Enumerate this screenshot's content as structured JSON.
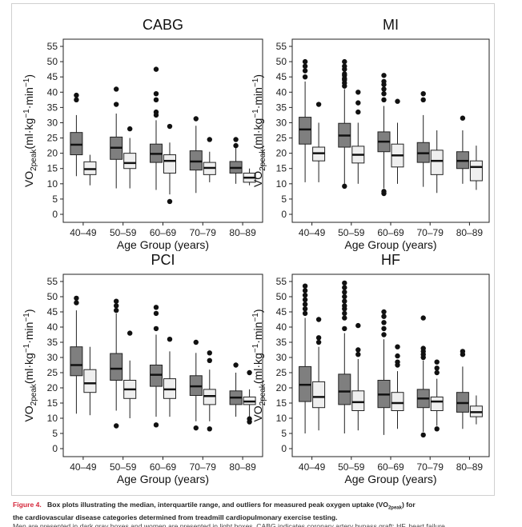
{
  "chart_data": [
    {
      "type": "boxplot",
      "title": "CABG",
      "xlabel": "Age Group (years)",
      "ylabel": "VO2peak(ml·kg−1·min−1)",
      "ylim": [
        0,
        55
      ],
      "yticks": [
        "0",
        "5",
        "10",
        "15",
        "20",
        "25",
        "30",
        "35",
        "40",
        "45",
        "50",
        "55"
      ],
      "categories": [
        "40–49",
        "50–59",
        "60–69",
        "70–79",
        "80–89"
      ],
      "series": [
        {
          "name": "men",
          "color": "#7f7f7f",
          "boxes": [
            {
              "whislo": 12.5,
              "q1": 19.5,
              "med": 22.8,
              "q3": 26.8,
              "whishi": 32.5,
              "fliers": [
                37.5,
                39
              ]
            },
            {
              "whislo": 8.5,
              "q1": 18,
              "med": 21.8,
              "q3": 25.3,
              "whishi": 33,
              "fliers": [
                36,
                41
              ]
            },
            {
              "whislo": 8,
              "q1": 17,
              "med": 19.8,
              "q3": 23,
              "whishi": 30.8,
              "fliers": [
                32.5,
                33.5,
                37.5,
                39.5,
                47.5
              ]
            },
            {
              "whislo": 7,
              "q1": 14.5,
              "med": 17.3,
              "q3": 20.8,
              "whishi": 29,
              "fliers": [
                31.3
              ]
            },
            {
              "whislo": 10,
              "q1": 13.5,
              "med": 15.2,
              "q3": 17.3,
              "whishi": 21.8,
              "fliers": [
                22.5,
                24.5
              ]
            }
          ]
        },
        {
          "name": "women",
          "color": "#efefef",
          "boxes": [
            {
              "whislo": 9.5,
              "q1": 13,
              "med": 14.8,
              "q3": 17.2,
              "whishi": 19.5,
              "fliers": []
            },
            {
              "whislo": 8.5,
              "q1": 15,
              "med": 16.8,
              "q3": 20,
              "whishi": 25,
              "fliers": [
                28
              ]
            },
            {
              "whislo": 6.5,
              "q1": 13.5,
              "med": 17.5,
              "q3": 19.5,
              "whishi": 23.5,
              "fliers": [
                4.2,
                28.8
              ]
            },
            {
              "whislo": 10.5,
              "q1": 13,
              "med": 15.2,
              "q3": 17,
              "whishi": 20.5,
              "fliers": [
                24.5
              ]
            },
            {
              "whislo": 9.5,
              "q1": 10.5,
              "med": 12,
              "q3": 13.5,
              "whishi": 15,
              "fliers": []
            }
          ]
        }
      ]
    },
    {
      "type": "boxplot",
      "title": "MI",
      "xlabel": "Age Group (years)",
      "ylabel": "VO2peak(ml·kg−1·min−1)",
      "ylim": [
        0,
        55
      ],
      "yticks": [
        "0",
        "5",
        "10",
        "15",
        "20",
        "25",
        "30",
        "35",
        "40",
        "45",
        "50",
        "55"
      ],
      "categories": [
        "40–49",
        "50–59",
        "60–69",
        "70–79",
        "80–89"
      ],
      "series": [
        {
          "name": "men",
          "color": "#7f7f7f",
          "boxes": [
            {
              "whislo": 10.5,
              "q1": 23,
              "med": 27.8,
              "q3": 31.8,
              "whishi": 43.5,
              "fliers": [
                45,
                47,
                48.5,
                50
              ]
            },
            {
              "whislo": 10,
              "q1": 22,
              "med": 25.8,
              "q3": 29.8,
              "whishi": 41,
              "fliers": [
                9.2,
                42,
                43,
                44,
                44.5,
                45.5,
                46,
                47.5,
                48.5,
                50
              ]
            },
            {
              "whislo": 8.5,
              "q1": 20.5,
              "med": 23.8,
              "q3": 27,
              "whishi": 35.5,
              "fliers": [
                6.8,
                7.5,
                37.5,
                39.5,
                41,
                42.5,
                43.5,
                45.5
              ]
            },
            {
              "whislo": 9,
              "q1": 17,
              "med": 20,
              "q3": 23.5,
              "whishi": 32.5,
              "fliers": [
                37.5,
                39.5
              ]
            },
            {
              "whislo": 10,
              "q1": 15,
              "med": 17.5,
              "q3": 20.5,
              "whishi": 27.5,
              "fliers": [
                31.5
              ]
            }
          ]
        },
        {
          "name": "women",
          "color": "#efefef",
          "boxes": [
            {
              "whislo": 10.5,
              "q1": 17.5,
              "med": 20,
              "q3": 22,
              "whishi": 30,
              "fliers": [
                36
              ]
            },
            {
              "whislo": 10,
              "q1": 16.8,
              "med": 19.5,
              "q3": 22.3,
              "whishi": 30,
              "fliers": [
                33.5,
                36.5,
                40
              ]
            },
            {
              "whislo": 10,
              "q1": 15.5,
              "med": 19.3,
              "q3": 23,
              "whishi": 30,
              "fliers": [
                37
              ]
            },
            {
              "whislo": 7,
              "q1": 13,
              "med": 17.5,
              "q3": 21,
              "whishi": 27.5,
              "fliers": []
            },
            {
              "whislo": 8,
              "q1": 11,
              "med": 15.5,
              "q3": 17.5,
              "whishi": 22.5,
              "fliers": []
            }
          ]
        }
      ]
    },
    {
      "type": "boxplot",
      "title": "PCI",
      "xlabel": "Age Group (years)",
      "ylabel": "VO2peak(ml·kg−1·min−1)",
      "ylim": [
        0,
        55
      ],
      "yticks": [
        "0",
        "5",
        "10",
        "15",
        "20",
        "25",
        "30",
        "35",
        "40",
        "45",
        "50",
        "55"
      ],
      "categories": [
        "40–49",
        "50–59",
        "60–69",
        "70–79",
        "80–89"
      ],
      "series": [
        {
          "name": "men",
          "color": "#7f7f7f",
          "boxes": [
            {
              "whislo": 11.5,
              "q1": 24,
              "med": 27.5,
              "q3": 33.5,
              "whishi": 45.5,
              "fliers": [
                48,
                49.5
              ]
            },
            {
              "whislo": 12.5,
              "q1": 22.5,
              "med": 26.3,
              "q3": 31.3,
              "whishi": 44.5,
              "fliers": [
                7.5,
                45.5,
                47,
                48.5
              ]
            },
            {
              "whislo": 10.5,
              "q1": 20.5,
              "med": 24.3,
              "q3": 27.5,
              "whishi": 37.5,
              "fliers": [
                7.8,
                39.5,
                44.5,
                46.5
              ]
            },
            {
              "whislo": 9,
              "q1": 17.5,
              "med": 20.5,
              "q3": 24,
              "whishi": 31.5,
              "fliers": [
                6.8,
                35
              ]
            },
            {
              "whislo": 10.5,
              "q1": 14.5,
              "med": 16.8,
              "q3": 19,
              "whishi": 25,
              "fliers": [
                27.5
              ]
            }
          ]
        },
        {
          "name": "women",
          "color": "#efefef",
          "boxes": [
            {
              "whislo": 11,
              "q1": 18.5,
              "med": 21.5,
              "q3": 26,
              "whishi": 33.5,
              "fliers": []
            },
            {
              "whislo": 10,
              "q1": 16.5,
              "med": 19.5,
              "q3": 22.5,
              "whishi": 29,
              "fliers": [
                38
              ]
            },
            {
              "whislo": 10.5,
              "q1": 16.5,
              "med": 19.5,
              "q3": 23,
              "whishi": 32,
              "fliers": [
                36
              ]
            },
            {
              "whislo": 9,
              "q1": 14.5,
              "med": 17.3,
              "q3": 19.5,
              "whishi": 26,
              "fliers": [
                6.5,
                29,
                31.5
              ]
            },
            {
              "whislo": 10.5,
              "q1": 14.5,
              "med": 15.5,
              "q3": 17,
              "whishi": 19.5,
              "fliers": [
                8.8,
                9.8,
                25
              ]
            }
          ]
        }
      ]
    },
    {
      "type": "boxplot",
      "title": "HF",
      "xlabel": "Age Group (years)",
      "ylabel": "VO2peak(ml·kg−1·min−1)",
      "ylim": [
        0,
        55
      ],
      "yticks": [
        "0",
        "5",
        "10",
        "15",
        "20",
        "25",
        "30",
        "35",
        "40",
        "45",
        "50",
        "55"
      ],
      "categories": [
        "40–49",
        "50–59",
        "60–69",
        "70–79",
        "80–89"
      ],
      "series": [
        {
          "name": "men",
          "color": "#7f7f7f",
          "boxes": [
            {
              "whislo": 5,
              "q1": 15.5,
              "med": 21,
              "q3": 27,
              "whishi": 43,
              "fliers": [
                44.5,
                46,
                47.5,
                49,
                50.5,
                52,
                53.5
              ]
            },
            {
              "whislo": 5,
              "q1": 14.5,
              "med": 18.8,
              "q3": 24.5,
              "whishi": 38,
              "fliers": [
                39.5,
                43,
                44.5,
                46,
                47,
                48.5,
                50,
                51.5,
                53,
                54.5
              ]
            },
            {
              "whislo": 4.5,
              "q1": 13.5,
              "med": 17.8,
              "q3": 22.5,
              "whishi": 36,
              "fliers": [
                37.5,
                39.5,
                41.5,
                43.5,
                45
              ]
            },
            {
              "whislo": 5.5,
              "q1": 13.5,
              "med": 16.5,
              "q3": 19.5,
              "whishi": 29,
              "fliers": [
                4.5,
                30,
                31,
                32,
                33,
                43
              ]
            },
            {
              "whislo": 6.5,
              "q1": 12,
              "med": 15,
              "q3": 18.5,
              "whishi": 27,
              "fliers": [
                31,
                32
              ]
            }
          ]
        },
        {
          "name": "women",
          "color": "#efefef",
          "boxes": [
            {
              "whislo": 6,
              "q1": 13.5,
              "med": 17,
              "q3": 22,
              "whishi": 33.5,
              "fliers": [
                35,
                36.5,
                42.5
              ]
            },
            {
              "whislo": 6,
              "q1": 12.5,
              "med": 15.3,
              "q3": 19,
              "whishi": 29.5,
              "fliers": [
                31,
                32.5,
                40.5
              ]
            },
            {
              "whislo": 6.5,
              "q1": 12.5,
              "med": 15,
              "q3": 18.5,
              "whishi": 25.5,
              "fliers": [
                27.5,
                28.5,
                30.5,
                33.5
              ]
            },
            {
              "whislo": 7.5,
              "q1": 12.5,
              "med": 15.5,
              "q3": 17,
              "whishi": 23,
              "fliers": [
                6.5,
                25,
                26.5,
                28.5
              ]
            },
            {
              "whislo": 8,
              "q1": 10.5,
              "med": 12,
              "q3": 14,
              "whishi": 17.5,
              "fliers": []
            }
          ]
        }
      ]
    }
  ],
  "caption": {
    "label": "Figure 4.",
    "text": "Box plots illustrating the median, interquartile range, and outliers for measured peak oxygen uptake (VO",
    "sub": "2peak",
    "text_end": ") for",
    "line2": "the cardiovascular disease categories determined from treadmill cardiopulmonary exercise testing.",
    "line3": "Men are presented in dark gray boxes and women are presented in light boxes. CABG indicates coronary artery bypass graft; HF, heart failure"
  }
}
